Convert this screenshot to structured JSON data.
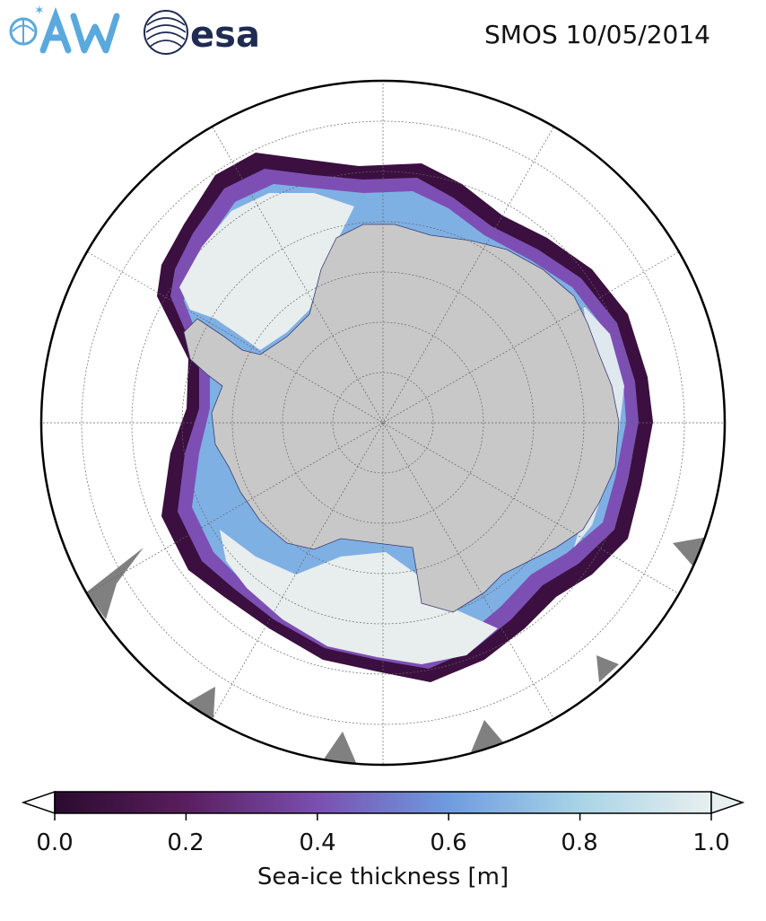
{
  "header": {
    "title": "SMOS 10/05/2014",
    "logos": [
      {
        "name": "awi-logo",
        "text": "AWI"
      },
      {
        "name": "esa-logo",
        "text": "esa"
      }
    ]
  },
  "map": {
    "projection": "south-polar-stereographic",
    "land_color": "#c8c8c8",
    "open_water_color": "#ffffff",
    "no_data_color": "#808080",
    "graticule": "dashed-gray"
  },
  "colorbar": {
    "label": "Sea-ice thickness [m]",
    "ticks": [
      "0.0",
      "0.2",
      "0.4",
      "0.6",
      "0.8",
      "1.0"
    ],
    "range": [
      0.0,
      1.0
    ],
    "extend": "both",
    "colors": [
      "#2a0b2e",
      "#5a1e5e",
      "#7a4fb0",
      "#6e9ce0",
      "#a8d4e6",
      "#e8efef"
    ]
  }
}
